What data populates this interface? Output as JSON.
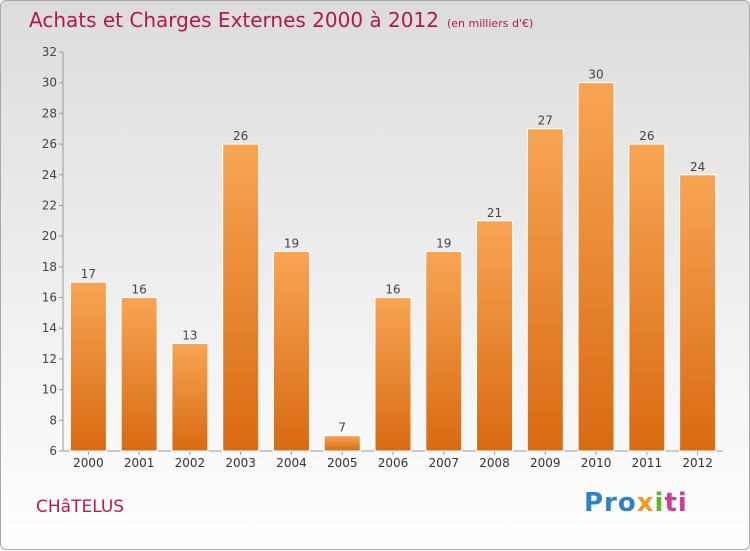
{
  "chart_data": {
    "type": "bar",
    "title": "Achats et Charges Externes 2000 à 2012",
    "unit_note": "(en milliers d'€)",
    "categories": [
      "2000",
      "2001",
      "2002",
      "2003",
      "2004",
      "2005",
      "2006",
      "2007",
      "2008",
      "2009",
      "2010",
      "2011",
      "2012"
    ],
    "values": [
      17,
      16,
      13,
      26,
      19,
      7,
      16,
      19,
      21,
      27,
      30,
      26,
      24
    ],
    "ylim": [
      6,
      32
    ],
    "yticks": [
      6,
      8,
      10,
      12,
      14,
      16,
      18,
      20,
      22,
      24,
      26,
      28,
      30,
      32
    ],
    "grid": false,
    "bar_color": "#f0923a"
  },
  "footer": {
    "town": "CHâTELUS",
    "logo": {
      "p1": "Pro",
      "p2": "x",
      "p3": "i",
      "p4": "ti"
    }
  }
}
